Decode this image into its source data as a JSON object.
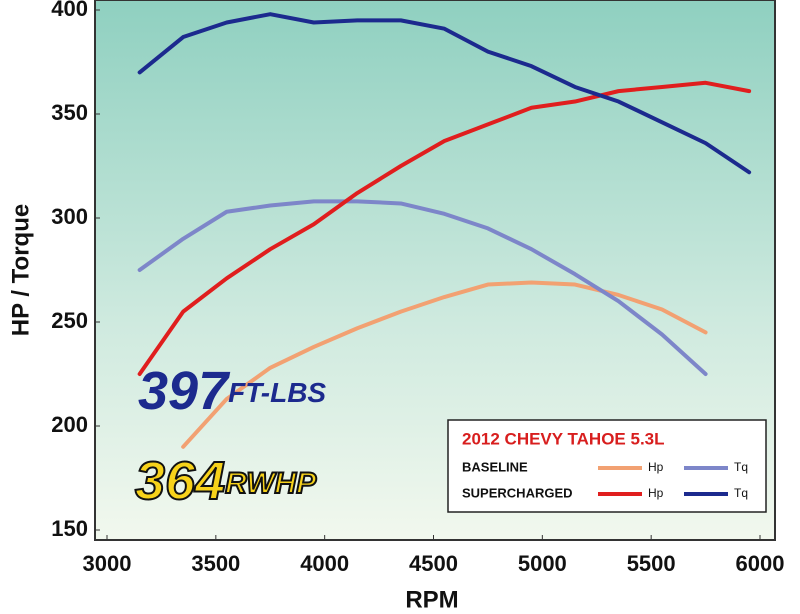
{
  "chart_data": {
    "type": "line",
    "ylabel": "HP / Torque",
    "xlabel": "RPM",
    "x": [
      3150,
      3350,
      3550,
      3750,
      3950,
      4150,
      4350,
      4550,
      4750,
      4950,
      5150,
      5350,
      5550,
      5750,
      5950
    ],
    "series": [
      {
        "group": "BASELINE",
        "name": "Hp",
        "color": "#f2a172",
        "values": [
          null,
          190,
          213,
          228,
          238,
          247,
          255,
          262,
          268,
          269,
          268,
          263,
          256,
          245,
          null
        ]
      },
      {
        "group": "BASELINE",
        "name": "Tq",
        "color": "#7d86c9",
        "values": [
          275,
          290,
          303,
          306,
          308,
          308,
          307,
          302,
          295,
          285,
          273,
          260,
          244,
          225,
          null
        ]
      },
      {
        "group": "SUPERCHARGED",
        "name": "Hp",
        "color": "#e01e1e",
        "values": [
          225,
          255,
          271,
          285,
          297,
          312,
          325,
          337,
          345,
          353,
          356,
          361,
          363,
          365,
          361
        ]
      },
      {
        "group": "SUPERCHARGED",
        "name": "Tq",
        "color": "#1c2a8e",
        "values": [
          370,
          387,
          394,
          398,
          394,
          395,
          395,
          391,
          380,
          373,
          363,
          356,
          346,
          336,
          322
        ]
      }
    ],
    "xlim": [
      3000,
      6000
    ],
    "xticks": [
      3000,
      3500,
      4000,
      4500,
      5000,
      5500,
      6000
    ],
    "ylim": [
      150,
      400
    ],
    "yticks": [
      150,
      200,
      250,
      300,
      350,
      400
    ],
    "legend_title": "2012 CHEVY TAHOE 5.3L",
    "annotations": [
      {
        "value": "397",
        "unit": "FT-LBS",
        "color": "#1c2a8e"
      },
      {
        "value": "364",
        "unit": "RWHP",
        "color": "#f7d21a"
      }
    ]
  }
}
